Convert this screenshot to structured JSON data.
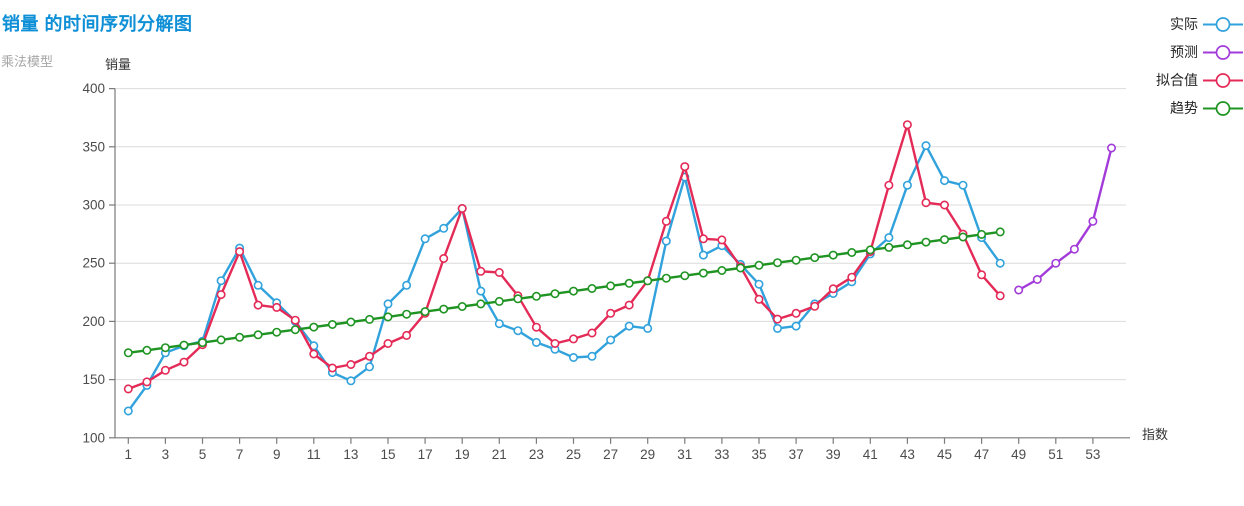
{
  "header": {
    "title": "销量 的时间序列分解图",
    "subtitle": "乘法模型"
  },
  "axes": {
    "y_title": "销量",
    "x_title": "指数",
    "y_min": 100,
    "y_max": 400,
    "y_ticks": [
      100,
      150,
      200,
      250,
      300,
      350,
      400
    ],
    "x_tick_labels": [
      1,
      3,
      5,
      7,
      9,
      11,
      13,
      15,
      17,
      19,
      21,
      23,
      25,
      27,
      29,
      31,
      33,
      35,
      37,
      39,
      41,
      43,
      45,
      47,
      49,
      51,
      53
    ]
  },
  "colors": {
    "title": "#0e8fd6",
    "subtitle_text": "#a6a6a6",
    "axis_line": "#7a7a7a",
    "gridline": "#dcdcdc",
    "tick_text": "#4c4c4c",
    "actual": "#31a2dc",
    "forecast": "#a23bd9",
    "fitted": "#e42a57",
    "trend": "#1f9422"
  },
  "legend": {
    "items": [
      {
        "label": "实际",
        "color": "#31a2dc"
      },
      {
        "label": "预测",
        "color": "#a23bd9"
      },
      {
        "label": "拟合值",
        "color": "#e42a57"
      },
      {
        "label": "趋势",
        "color": "#1f9422"
      }
    ]
  },
  "chart_data": {
    "type": "line",
    "title": "销量 的时间序列分解图",
    "subtitle": "乘法模型",
    "xlabel": "指数",
    "ylabel": "销量",
    "ylim": [
      100,
      400
    ],
    "xlim": [
      1,
      54
    ],
    "grid": "horizontal",
    "legend_position": "top-right",
    "marker": "open-circle",
    "series": [
      {
        "name": "实际",
        "color": "#31a2dc",
        "x_start": 1,
        "values": [
          123,
          145,
          173,
          179,
          183,
          235,
          263,
          231,
          216,
          200,
          179,
          156,
          149,
          161,
          215,
          231,
          271,
          280,
          297,
          226,
          198,
          192,
          182,
          176,
          169,
          170,
          184,
          196,
          194,
          269,
          324,
          257,
          265,
          249,
          232,
          194,
          196,
          215,
          224,
          234,
          258,
          272,
          317,
          351,
          321,
          317,
          272,
          250
        ]
      },
      {
        "name": "预测",
        "color": "#a23bd9",
        "x_start": 49,
        "values": [
          227,
          236,
          250,
          262,
          286,
          349
        ]
      },
      {
        "name": "拟合值",
        "color": "#e42a57",
        "x_start": 1,
        "values": [
          142,
          148,
          158,
          165,
          180,
          223,
          260,
          214,
          212,
          201,
          172,
          160,
          163,
          170,
          181,
          188,
          207,
          254,
          297,
          243,
          242,
          222,
          195,
          181,
          185,
          190,
          207,
          214,
          235,
          286,
          333,
          271,
          270,
          247,
          219,
          202,
          207,
          213,
          228,
          238,
          260,
          317,
          369,
          302,
          300,
          275,
          240,
          222
        ]
      },
      {
        "name": "趋势",
        "color": "#1f9422",
        "x_start": 1,
        "values": [
          173.0,
          175.2,
          177.4,
          179.6,
          181.8,
          184.1,
          186.3,
          188.5,
          190.7,
          192.9,
          195.1,
          197.3,
          199.5,
          201.7,
          203.9,
          206.2,
          208.4,
          210.6,
          212.8,
          215.0,
          217.2,
          219.4,
          221.6,
          223.8,
          226.0,
          228.3,
          230.5,
          232.7,
          234.9,
          237.1,
          239.3,
          241.5,
          243.7,
          245.9,
          248.2,
          250.4,
          252.6,
          254.8,
          257.0,
          259.2,
          261.4,
          263.6,
          265.8,
          268.1,
          270.3,
          272.5,
          274.7,
          276.9
        ]
      }
    ]
  }
}
